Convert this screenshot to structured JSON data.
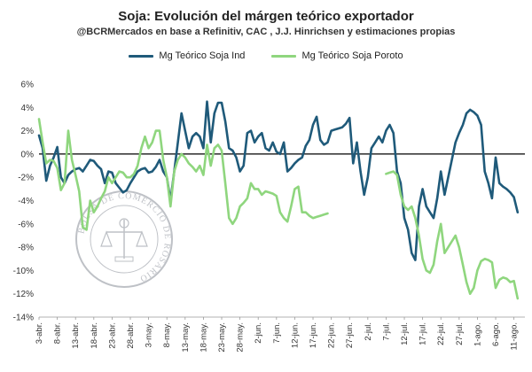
{
  "chart_data": {
    "type": "line",
    "title": "Soja: Evolución del márgen teórico exportador",
    "subtitle": "@BCRMercados en base a Refinitiv, CAC , J.J. Hinrichsen y estimaciones propias",
    "ylim": [
      -14,
      6
    ],
    "yticks": [
      6,
      4,
      2,
      0,
      -2,
      -4,
      -6,
      -8,
      -10,
      -12,
      -14
    ],
    "ytick_labels": [
      "6%",
      "4%",
      "2%",
      "0%",
      "-2%",
      "-4%",
      "-6%",
      "-8%",
      "-10%",
      "-12%",
      "-14%"
    ],
    "xlim": [
      0,
      133
    ],
    "x_tick_positions": [
      0,
      5,
      10,
      15,
      20,
      25,
      30,
      35,
      40,
      45,
      50,
      55,
      60,
      65,
      70,
      75,
      80,
      85,
      90,
      95,
      100,
      105,
      110,
      115,
      120,
      125,
      130
    ],
    "x_tick_labels": [
      "3-abr.",
      "8-abr.",
      "13-abr.",
      "18-abr.",
      "23-abr.",
      "28-abr.",
      "3-may.",
      "8-may.",
      "13-may.",
      "18-may.",
      "23-may.",
      "28-may.",
      "2-jun.",
      "7-jun.",
      "12-jun.",
      "17-jun.",
      "22-jun.",
      "27-jun.",
      "2-jul.",
      "7-jul.",
      "12-jul.",
      "17-jul.",
      "22-jul.",
      "27-jul.",
      "1-ago.",
      "6-ago.",
      "11-ago."
    ],
    "zero_line": true,
    "grid": false,
    "legend_position": "top",
    "series": [
      {
        "name": "Mg Teórico Soja Ind",
        "color": "#1f5a7a",
        "segments": [
          [
            [
              0,
              1.6
            ],
            [
              1,
              0.5
            ],
            [
              2,
              -2.3
            ],
            [
              3,
              -1.0
            ],
            [
              4,
              -0.3
            ],
            [
              5,
              0.6
            ],
            [
              6,
              -2.0
            ],
            [
              7,
              -2.5
            ],
            [
              8,
              -1.8
            ],
            [
              9,
              -1.5
            ],
            [
              10,
              -1.3
            ],
            [
              11,
              -1.2
            ],
            [
              12,
              -1.5
            ],
            [
              13,
              -1.0
            ],
            [
              14,
              -0.5
            ],
            [
              15,
              -0.6
            ],
            [
              16,
              -1.0
            ],
            [
              17,
              -1.3
            ],
            [
              18,
              -2.5
            ],
            [
              19,
              -1.5
            ],
            [
              20,
              -1.6
            ],
            [
              21,
              -2.5
            ],
            [
              22,
              -2.9
            ],
            [
              23,
              -3.3
            ],
            [
              24,
              -3.1
            ],
            [
              25,
              -2.5
            ],
            [
              26,
              -2.0
            ],
            [
              27,
              -1.5
            ],
            [
              28,
              -1.3
            ],
            [
              29,
              -1.2
            ],
            [
              30,
              -1.6
            ],
            [
              31,
              -1.5
            ],
            [
              32,
              -1.1
            ],
            [
              33,
              -0.5
            ],
            [
              34,
              -1.5
            ],
            [
              35,
              -2.0
            ],
            [
              36,
              -4.0
            ],
            [
              37,
              -1.5
            ],
            [
              38,
              1.0
            ],
            [
              39,
              3.5
            ],
            [
              40,
              2.0
            ],
            [
              41,
              0.5
            ],
            [
              42,
              1.5
            ],
            [
              43,
              1.8
            ],
            [
              44,
              1.5
            ],
            [
              45,
              0.5
            ],
            [
              46,
              4.5
            ],
            [
              47,
              1.0
            ],
            [
              48,
              3.5
            ],
            [
              49,
              4.4
            ],
            [
              50,
              4.4
            ],
            [
              51,
              2.8
            ],
            [
              52,
              0.5
            ],
            [
              53,
              0.3
            ],
            [
              54,
              -0.3
            ],
            [
              55,
              -1.5
            ],
            [
              56,
              -1.0
            ],
            [
              57,
              1.8
            ],
            [
              58,
              2.0
            ],
            [
              59,
              1.0
            ],
            [
              60,
              1.5
            ],
            [
              61,
              1.8
            ],
            [
              62,
              0.5
            ],
            [
              63,
              0.3
            ],
            [
              64,
              1.0
            ],
            [
              65,
              0.2
            ],
            [
              66,
              0.0
            ],
            [
              67,
              1.0
            ],
            [
              68,
              -1.5
            ],
            [
              69,
              -1.2
            ],
            [
              70,
              -0.8
            ],
            [
              71,
              -0.5
            ],
            [
              72,
              -0.3
            ],
            [
              73,
              0.7
            ],
            [
              74,
              1.2
            ],
            [
              75,
              2.5
            ],
            [
              76,
              3.2
            ],
            [
              77,
              1.2
            ],
            [
              78,
              0.8
            ],
            [
              79,
              1.0
            ],
            [
              80,
              2.0
            ],
            [
              81,
              2.1
            ],
            [
              82,
              2.2
            ],
            [
              83,
              2.3
            ],
            [
              84,
              2.6
            ],
            [
              85,
              3.1
            ],
            [
              86,
              -0.8
            ],
            [
              87,
              1.0
            ],
            [
              88,
              -1.5
            ],
            [
              89,
              -3.5
            ],
            [
              90,
              -2.0
            ],
            [
              91,
              0.5
            ],
            [
              92,
              1.0
            ],
            [
              93,
              1.5
            ],
            [
              94,
              1.0
            ],
            [
              95,
              2.0
            ],
            [
              96,
              2.5
            ],
            [
              97,
              1.8
            ],
            [
              98,
              -1.5
            ],
            [
              99,
              -2.5
            ],
            [
              100,
              -5.5
            ],
            [
              101,
              -6.5
            ],
            [
              102,
              -8.5
            ],
            [
              103,
              -9.1
            ],
            [
              104,
              -4.5
            ],
            [
              105,
              -3.0
            ],
            [
              106,
              -4.5
            ],
            [
              107,
              -5.0
            ],
            [
              108,
              -5.5
            ],
            [
              109,
              -3.8
            ],
            [
              110,
              -1.5
            ],
            [
              111,
              -3.5
            ],
            [
              112,
              -2.0
            ],
            [
              113,
              -0.5
            ],
            [
              114,
              1.0
            ],
            [
              115,
              1.8
            ],
            [
              116,
              2.5
            ],
            [
              117,
              3.5
            ],
            [
              118,
              3.8
            ],
            [
              119,
              3.6
            ],
            [
              120,
              3.3
            ],
            [
              121,
              2.5
            ],
            [
              122,
              -1.5
            ],
            [
              123,
              -2.5
            ],
            [
              124,
              -3.8
            ],
            [
              125,
              -0.3
            ],
            [
              126,
              -2.5
            ],
            [
              127,
              -2.8
            ],
            [
              128,
              -3.0
            ],
            [
              129,
              -3.3
            ],
            [
              130,
              -3.7
            ],
            [
              131,
              -5.0
            ]
          ]
        ]
      },
      {
        "name": "Mg Teórico Soja Poroto",
        "color": "#8fd67e",
        "segments": [
          [
            [
              0,
              3.0
            ],
            [
              1,
              1.0
            ],
            [
              2,
              -0.8
            ],
            [
              3,
              -0.5
            ],
            [
              4,
              -0.6
            ],
            [
              5,
              -1.2
            ],
            [
              6,
              -3.1
            ],
            [
              7,
              -2.5
            ],
            [
              8,
              2.0
            ],
            [
              9,
              -0.5
            ],
            [
              10,
              -1.8
            ],
            [
              11,
              -3.2
            ],
            [
              12,
              -6.3
            ],
            [
              13,
              -6.5
            ],
            [
              14,
              -4.0
            ],
            [
              15,
              -5.0
            ],
            [
              16,
              -4.5
            ],
            [
              17,
              -3.8
            ],
            [
              18,
              -3.2
            ],
            [
              19,
              -2.0
            ],
            [
              20,
              -2.5
            ],
            [
              21,
              -2.0
            ],
            [
              22,
              -1.5
            ],
            [
              23,
              -1.6
            ],
            [
              24,
              -2.0
            ],
            [
              25,
              -2.0
            ],
            [
              26,
              -1.7
            ],
            [
              27,
              -1.0
            ],
            [
              28,
              0.5
            ],
            [
              29,
              1.5
            ],
            [
              30,
              0.5
            ],
            [
              31,
              1.0
            ],
            [
              32,
              2.0
            ],
            [
              33,
              2.0
            ],
            [
              34,
              -0.5
            ],
            [
              35,
              -2.0
            ],
            [
              36,
              -4.5
            ],
            [
              37,
              -1.5
            ],
            [
              38,
              -0.5
            ],
            [
              39,
              0.0
            ],
            [
              40,
              -0.3
            ],
            [
              41,
              -0.8
            ],
            [
              42,
              -1.1
            ],
            [
              43,
              -1.5
            ],
            [
              44,
              -1.0
            ],
            [
              45,
              -1.8
            ],
            [
              46,
              0.8
            ],
            [
              47,
              -1.0
            ],
            [
              48,
              0.5
            ],
            [
              49,
              0.8
            ],
            [
              50,
              0.3
            ],
            [
              51,
              -2.5
            ],
            [
              52,
              -5.5
            ],
            [
              53,
              -6.0
            ],
            [
              54,
              -5.5
            ],
            [
              55,
              -4.5
            ],
            [
              56,
              -4.2
            ],
            [
              57,
              -3.8
            ],
            [
              58,
              -2.5
            ],
            [
              59,
              -3.0
            ],
            [
              60,
              -3.0
            ],
            [
              61,
              -3.5
            ],
            [
              62,
              -3.2
            ],
            [
              63,
              -3.3
            ],
            [
              64,
              -3.4
            ],
            [
              65,
              -3.6
            ],
            [
              66,
              -5.0
            ],
            [
              67,
              -5.5
            ],
            [
              68,
              -5.8
            ],
            [
              69,
              -4.5
            ],
            [
              70,
              -3.0
            ],
            [
              71,
              -2.8
            ],
            [
              72,
              -5.0
            ],
            [
              73,
              -5.0
            ],
            [
              74,
              -5.3
            ],
            [
              75,
              -5.5
            ],
            [
              76,
              -5.4
            ],
            [
              77,
              -5.3
            ],
            [
              78,
              -5.2
            ],
            [
              79,
              -5.1
            ]
          ],
          [
            [
              95,
              -1.7
            ],
            [
              96,
              -1.6
            ],
            [
              97,
              -1.5
            ],
            [
              98,
              -1.8
            ],
            [
              99,
              -3.5
            ],
            [
              100,
              -4.5
            ],
            [
              101,
              -4.8
            ],
            [
              102,
              -4.5
            ],
            [
              103,
              -5.5
            ],
            [
              104,
              -7.0
            ],
            [
              105,
              -9.0
            ],
            [
              106,
              -10.0
            ],
            [
              107,
              -10.2
            ],
            [
              108,
              -9.5
            ],
            [
              109,
              -7.5
            ],
            [
              110,
              -6.0
            ],
            [
              111,
              -8.5
            ],
            [
              112,
              -8.0
            ],
            [
              113,
              -7.5
            ],
            [
              114,
              -7.0
            ],
            [
              115,
              -8.0
            ],
            [
              116,
              -9.5
            ],
            [
              117,
              -11.0
            ],
            [
              118,
              -12.0
            ],
            [
              119,
              -11.5
            ],
            [
              120,
              -10.0
            ],
            [
              121,
              -9.2
            ],
            [
              122,
              -9.0
            ],
            [
              123,
              -9.1
            ],
            [
              124,
              -9.3
            ],
            [
              125,
              -11.5
            ],
            [
              126,
              -10.8
            ],
            [
              127,
              -10.6
            ],
            [
              128,
              -10.7
            ],
            [
              129,
              -11.0
            ],
            [
              130,
              -10.9
            ],
            [
              131,
              -12.4
            ]
          ]
        ]
      }
    ]
  }
}
